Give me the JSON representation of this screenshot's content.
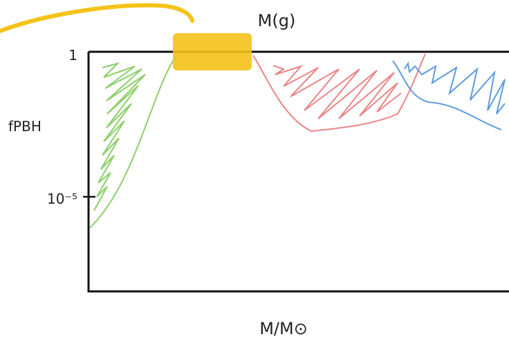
{
  "diagram": {
    "top_label": "M(g)",
    "y_axis_label": "fPBH",
    "x_axis_label": "M/M⊙",
    "y_ticks": [
      "1",
      "10⁻⁵"
    ]
  }
}
